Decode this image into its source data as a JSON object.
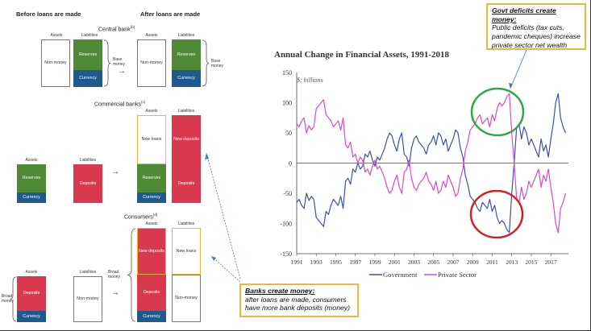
{
  "left": {
    "before_header": "Before loans are made",
    "after_header": "After loans are made",
    "assets_label": "Assets",
    "liabilities_label": "Liabilities",
    "central_bank": {
      "title": "Central bank",
      "note": "(b)",
      "non_money": "Non-money",
      "reserves": "Reserves",
      "currency": "Currency",
      "base_money_a": "Base money",
      "base_money_b": "Base money"
    },
    "commercial_banks": {
      "title": "Commercial banks",
      "note": "(c)",
      "reserves": "Reserves",
      "currency": "Currency",
      "deposits": "Deposits",
      "new_loans": "New loans",
      "new_deposits": "New deposits"
    },
    "consumers": {
      "title": "Consumers",
      "note": "(d)",
      "deposits": "Deposits",
      "currency": "Currency",
      "non_money": "Non-money",
      "new_deposits": "New deposits",
      "new_loans": "New loans",
      "broad_money_a": "Broad money",
      "broad_money_b": "Broad money"
    }
  },
  "callouts": {
    "govt": {
      "title": "Govt deficits create money:",
      "body": "Public deficits (tax cuts, pandemic cheques) increase private sector net wealth"
    },
    "banks": {
      "title": "Banks create money:",
      "body": "after loans are made, consumers have more bank deposits (money)"
    }
  },
  "colors": {
    "reserves": "#4f8a37",
    "currency": "#1f5a8c",
    "deposits": "#d8394e",
    "callout_border": "#f3b43c",
    "callout_arrow": "#4a76c8",
    "government": "#3d4fb5",
    "private_sector": "#d94bd0",
    "green_circle": "#2ea84a",
    "red_circle": "#d42020"
  },
  "chart_data": {
    "type": "line",
    "title": "Annual Change in Financial Assets, 1991-2018",
    "subtitle": "$; billions",
    "ylim": [
      -150,
      150
    ],
    "yticks": [
      -150,
      -100,
      -50,
      0,
      50,
      100,
      150
    ],
    "xlim": [
      1991,
      2018.8
    ],
    "xticks": [
      1991,
      1993,
      1995,
      1997,
      1999,
      2001,
      2003,
      2005,
      2007,
      2009,
      2011,
      2013,
      2015,
      2017
    ],
    "grid": false,
    "legend_placement": "bottom-center",
    "series": [
      {
        "name": "Government",
        "x": [
          1991,
          1991.25,
          1991.5,
          1991.75,
          1992,
          1992.25,
          1992.5,
          1992.75,
          1993,
          1993.25,
          1993.5,
          1993.75,
          1994,
          1994.25,
          1994.5,
          1994.75,
          1995,
          1995.25,
          1995.5,
          1995.75,
          1996,
          1996.25,
          1996.5,
          1996.75,
          1997,
          1997.25,
          1997.5,
          1997.75,
          1998,
          1998.25,
          1998.5,
          1998.75,
          1999,
          1999.25,
          1999.5,
          1999.75,
          2000,
          2000.25,
          2000.5,
          2000.75,
          2001,
          2001.25,
          2001.5,
          2001.75,
          2002,
          2002.25,
          2002.5,
          2002.75,
          2003,
          2003.25,
          2003.5,
          2003.75,
          2004,
          2004.25,
          2004.5,
          2004.75,
          2005,
          2005.25,
          2005.5,
          2005.75,
          2006,
          2006.25,
          2006.5,
          2006.75,
          2007,
          2007.25,
          2007.5,
          2007.75,
          2008,
          2008.25,
          2008.5,
          2008.75,
          2009,
          2009.25,
          2009.5,
          2009.75,
          2010,
          2010.25,
          2010.5,
          2010.75,
          2011,
          2011.25,
          2011.5,
          2011.75,
          2012,
          2012.25,
          2012.5,
          2012.75,
          2013,
          2013.25,
          2013.5,
          2013.75,
          2014,
          2014.25,
          2014.5,
          2014.75,
          2015,
          2015.25,
          2015.5,
          2015.75,
          2016,
          2016.25,
          2016.5,
          2016.75,
          2017,
          2017.25,
          2017.5,
          2017.75,
          2018,
          2018.25,
          2018.5
        ],
        "values": [
          -65,
          -60,
          -70,
          -75,
          -50,
          -62,
          -55,
          -60,
          -90,
          -95,
          -100,
          -105,
          -80,
          -85,
          -70,
          -60,
          -65,
          -70,
          -55,
          -75,
          -30,
          -25,
          -35,
          -10,
          -15,
          0,
          -10,
          -5,
          15,
          10,
          20,
          5,
          -5,
          10,
          5,
          15,
          25,
          40,
          50,
          45,
          30,
          20,
          40,
          50,
          15,
          10,
          -5,
          25,
          40,
          45,
          35,
          30,
          25,
          15,
          30,
          35,
          45,
          30,
          50,
          45,
          30,
          40,
          20,
          30,
          40,
          55,
          50,
          25,
          10,
          -20,
          -35,
          -55,
          -60,
          -65,
          -75,
          -80,
          -65,
          -70,
          -75,
          -60,
          -80,
          -70,
          -90,
          -100,
          -95,
          -100,
          -110,
          -115,
          -50,
          0,
          60,
          65,
          40,
          60,
          50,
          30,
          40,
          30,
          20,
          10,
          40,
          20,
          30,
          10,
          40,
          65,
          100,
          115,
          75,
          60,
          50
        ]
      },
      {
        "name": "Private Sector",
        "x": [
          1991,
          1991.25,
          1991.5,
          1991.75,
          1992,
          1992.25,
          1992.5,
          1992.75,
          1993,
          1993.25,
          1993.5,
          1993.75,
          1994,
          1994.25,
          1994.5,
          1994.75,
          1995,
          1995.25,
          1995.5,
          1995.75,
          1996,
          1996.25,
          1996.5,
          1996.75,
          1997,
          1997.25,
          1997.5,
          1997.75,
          1998,
          1998.25,
          1998.5,
          1998.75,
          1999,
          1999.25,
          1999.5,
          1999.75,
          2000,
          2000.25,
          2000.5,
          2000.75,
          2001,
          2001.25,
          2001.5,
          2001.75,
          2002,
          2002.25,
          2002.5,
          2002.75,
          2003,
          2003.25,
          2003.5,
          2003.75,
          2004,
          2004.25,
          2004.5,
          2004.75,
          2005,
          2005.25,
          2005.5,
          2005.75,
          2006,
          2006.25,
          2006.5,
          2006.75,
          2007,
          2007.25,
          2007.5,
          2007.75,
          2008,
          2008.25,
          2008.5,
          2008.75,
          2009,
          2009.25,
          2009.5,
          2009.75,
          2010,
          2010.25,
          2010.5,
          2010.75,
          2011,
          2011.25,
          2011.5,
          2011.75,
          2012,
          2012.25,
          2012.5,
          2012.75,
          2013,
          2013.25,
          2013.5,
          2013.75,
          2014,
          2014.25,
          2014.5,
          2014.75,
          2015,
          2015.25,
          2015.5,
          2015.75,
          2016,
          2016.25,
          2016.5,
          2016.75,
          2017,
          2017.25,
          2017.5,
          2017.75,
          2018,
          2018.25,
          2018.5
        ],
        "values": [
          65,
          60,
          70,
          75,
          50,
          62,
          55,
          60,
          90,
          95,
          100,
          105,
          80,
          75,
          70,
          60,
          65,
          70,
          55,
          75,
          30,
          25,
          35,
          10,
          15,
          0,
          10,
          5,
          -15,
          -10,
          -20,
          -5,
          5,
          -10,
          -5,
          -15,
          -25,
          -40,
          -50,
          -45,
          -30,
          -20,
          -40,
          -50,
          -15,
          -10,
          5,
          -25,
          -40,
          -45,
          -35,
          -30,
          -25,
          -15,
          -30,
          -35,
          -45,
          -30,
          -50,
          -45,
          -30,
          -40,
          -20,
          -30,
          -40,
          -55,
          -50,
          -25,
          -10,
          20,
          35,
          55,
          60,
          65,
          75,
          80,
          65,
          70,
          75,
          60,
          80,
          70,
          90,
          100,
          95,
          100,
          110,
          115,
          50,
          0,
          -60,
          -65,
          -40,
          -60,
          -50,
          -30,
          -40,
          -30,
          -20,
          -10,
          -40,
          -20,
          -30,
          -10,
          -40,
          -65,
          -100,
          -115,
          -75,
          -65,
          -50
        ]
      }
    ]
  }
}
